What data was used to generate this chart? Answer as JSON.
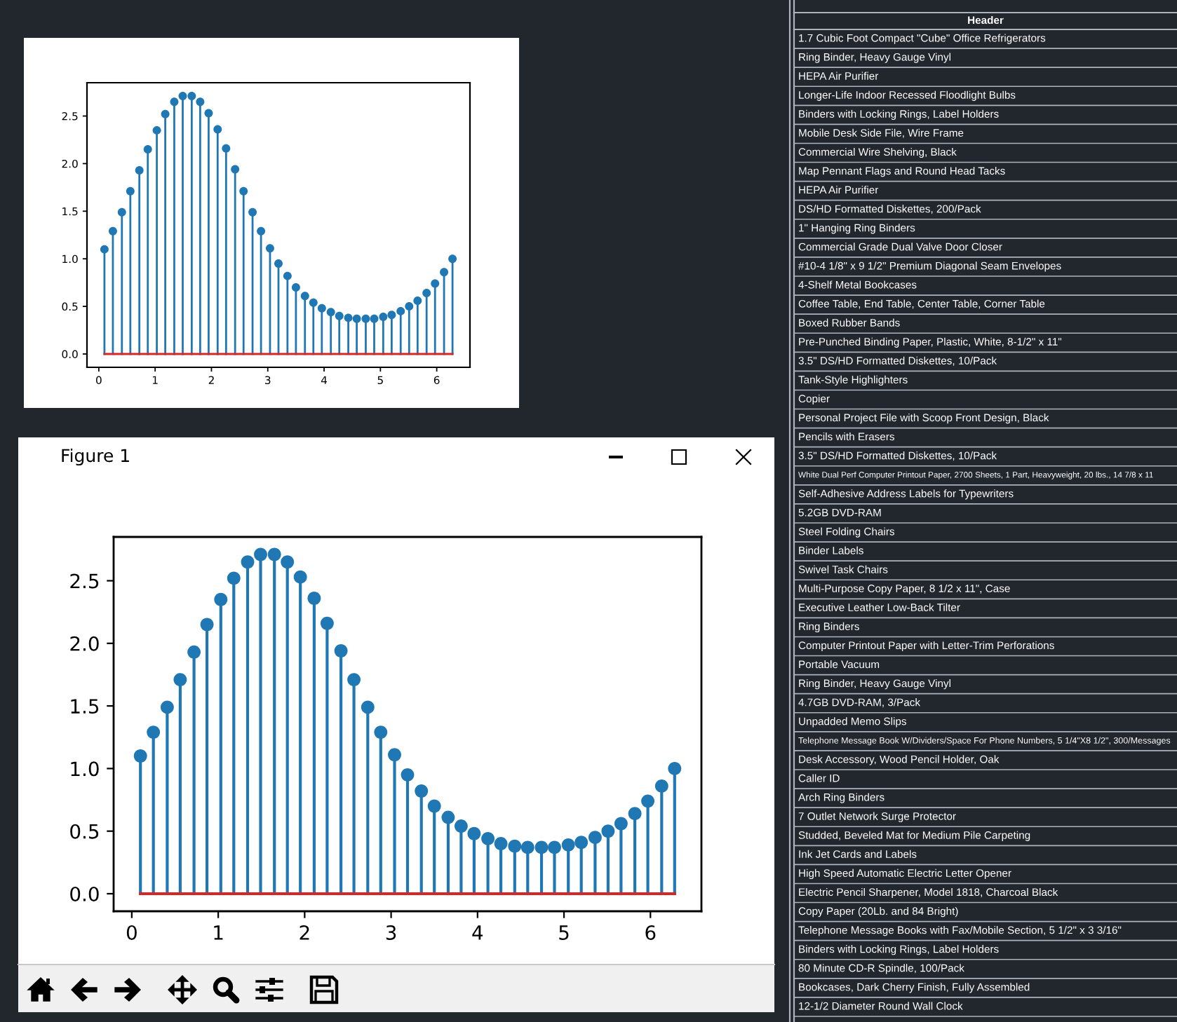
{
  "chart_data": [
    {
      "type": "lollipop",
      "x": [
        0.1,
        0.25,
        0.41,
        0.56,
        0.72,
        0.87,
        1.03,
        1.18,
        1.34,
        1.49,
        1.65,
        1.8,
        1.95,
        2.11,
        2.26,
        2.42,
        2.57,
        2.73,
        2.88,
        3.04,
        3.19,
        3.35,
        3.5,
        3.66,
        3.81,
        3.96,
        4.12,
        4.27,
        4.43,
        4.58,
        4.74,
        4.89,
        5.05,
        5.2,
        5.36,
        5.51,
        5.66,
        5.82,
        5.97,
        6.13,
        6.28
      ],
      "series": [
        {
          "color": "#1f77b4",
          "values": [
            1.1,
            1.29,
            1.49,
            1.71,
            1.93,
            2.15,
            2.35,
            2.52,
            2.65,
            2.71,
            2.71,
            2.65,
            2.53,
            2.36,
            2.16,
            1.94,
            1.71,
            1.49,
            1.29,
            1.11,
            0.95,
            0.82,
            0.7,
            0.61,
            0.54,
            0.48,
            0.44,
            0.4,
            0.38,
            0.37,
            0.37,
            0.37,
            0.39,
            0.41,
            0.45,
            0.5,
            0.56,
            0.64,
            0.74,
            0.86,
            1.0
          ]
        }
      ],
      "xlim": [
        -0.21,
        6.59
      ],
      "ylim": [
        -0.14,
        2.85
      ],
      "xticks": [
        0,
        1,
        2,
        3,
        4,
        5,
        6
      ],
      "yticks": [
        {
          "value": 0,
          "label": "0.0"
        },
        0.5,
        {
          "value": 1,
          "label": "1.0"
        },
        1.5,
        {
          "value": 2,
          "label": "2.0"
        },
        2.5
      ],
      "ref_lines": [
        {
          "axis": "y",
          "value": 0,
          "color": "#d62728"
        }
      ],
      "marker": "circle"
    },
    {
      "type": "lollipop",
      "title": "Figure 1",
      "x": [
        0.1,
        0.25,
        0.41,
        0.56,
        0.72,
        0.87,
        1.03,
        1.18,
        1.34,
        1.49,
        1.65,
        1.8,
        1.95,
        2.11,
        2.26,
        2.42,
        2.57,
        2.73,
        2.88,
        3.04,
        3.19,
        3.35,
        3.5,
        3.66,
        3.81,
        3.96,
        4.12,
        4.27,
        4.43,
        4.58,
        4.74,
        4.89,
        5.05,
        5.2,
        5.36,
        5.51,
        5.66,
        5.82,
        5.97,
        6.13,
        6.28
      ],
      "series": [
        {
          "color": "#1f77b4",
          "values": [
            1.1,
            1.29,
            1.49,
            1.71,
            1.93,
            2.15,
            2.35,
            2.52,
            2.65,
            2.71,
            2.71,
            2.65,
            2.53,
            2.36,
            2.16,
            1.94,
            1.71,
            1.49,
            1.29,
            1.11,
            0.95,
            0.82,
            0.7,
            0.61,
            0.54,
            0.48,
            0.44,
            0.4,
            0.38,
            0.37,
            0.37,
            0.37,
            0.39,
            0.41,
            0.45,
            0.5,
            0.56,
            0.64,
            0.74,
            0.86,
            1.0
          ]
        }
      ],
      "xlim": [
        -0.21,
        6.59
      ],
      "ylim": [
        -0.14,
        2.85
      ],
      "xticks": [
        0,
        1,
        2,
        3,
        4,
        5,
        6
      ],
      "yticks": [
        {
          "value": 0,
          "label": "0.0"
        },
        0.5,
        {
          "value": 1,
          "label": "1.0"
        },
        1.5,
        {
          "value": 2,
          "label": "2.0"
        },
        2.5
      ],
      "ref_lines": [
        {
          "axis": "y",
          "value": 0,
          "color": "#d62728"
        }
      ],
      "marker": "circle"
    },
    {
      "type": "other",
      "title": "Header",
      "annotations": [
        "1.7 Cubic Foot Compact \"Cube\" Office Refrigerators",
        "Ring Binder, Heavy Gauge Vinyl",
        "HEPA Air Purifier",
        "Longer-Life Indoor Recessed Floodlight Bulbs",
        "Binders with Locking Rings, Label Holders",
        "Mobile Desk Side File, Wire Frame",
        "Commercial Wire Shelving, Black",
        "Map Pennant Flags and Round Head Tacks",
        "HEPA Air Purifier",
        "DS/HD Formatted Diskettes, 200/Pack",
        "1\" Hanging Ring Binders",
        "Commercial Grade Dual Valve Door Closer",
        "#10-4 1/8\" x 9 1/2\" Premium Diagonal Seam Envelopes",
        "4-Shelf Metal Bookcases",
        "Coffee Table, End Table, Center Table, Corner Table",
        "Boxed Rubber Bands",
        "Pre-Punched Binding Paper, Plastic, White, 8-1/2\" x 11\"",
        "3.5\" DS/HD Formatted Diskettes, 10/Pack",
        "Tank-Style Highlighters",
        "Copier",
        "Personal Project File with Scoop Front Design, Black",
        "Pencils with Erasers",
        "3.5\" DS/HD Formatted Diskettes, 10/Pack",
        "White Dual Perf Computer Printout Paper, 2700 Sheets, 1 Part, Heavyweight, 20 lbs., 14 7/8 x 11",
        "Self-Adhesive Address Labels for Typewriters",
        "5.2GB DVD-RAM",
        "Steel Folding Chairs",
        "Binder Labels",
        "Swivel Task Chairs",
        "Multi-Purpose Copy Paper, 8 1/2 x 11\", Case",
        "Executive Leather Low-Back Tilter",
        "Ring Binders",
        "Computer Printout Paper with Letter-Trim Perforations",
        "Portable Vacuum",
        "Ring Binder, Heavy Gauge Vinyl",
        "4.7GB DVD-RAM, 3/Pack",
        "Unpadded Memo Slips",
        "Telephone Message Book W/Dividers/Space For Phone Numbers, 5 1/4\"X8 1/2\", 300/Messages",
        "Desk Accessory, Wood Pencil Holder, Oak",
        "Caller ID",
        "Arch Ring Binders",
        "7 Outlet Network Surge Protector",
        "Studded, Beveled Mat for Medium Pile Carpeting",
        "Ink Jet Cards and Labels",
        "High Speed Automatic Electric Letter Opener",
        "Electric Pencil Sharpener, Model 1818, Charcoal Black",
        "Copy Paper (20Lb. and 84 Bright)",
        "Telephone Message Books with Fax/Mobile Section, 5 1/2\" x 3 3/16\"",
        "Binders with Locking Rings, Label Holders",
        "80 Minute CD-R Spindle, 100/Pack",
        "Bookcases, Dark Cherry Finish, Fully Assembled",
        "12-1/2 Diameter Round Wall Clock"
      ]
    }
  ]
}
